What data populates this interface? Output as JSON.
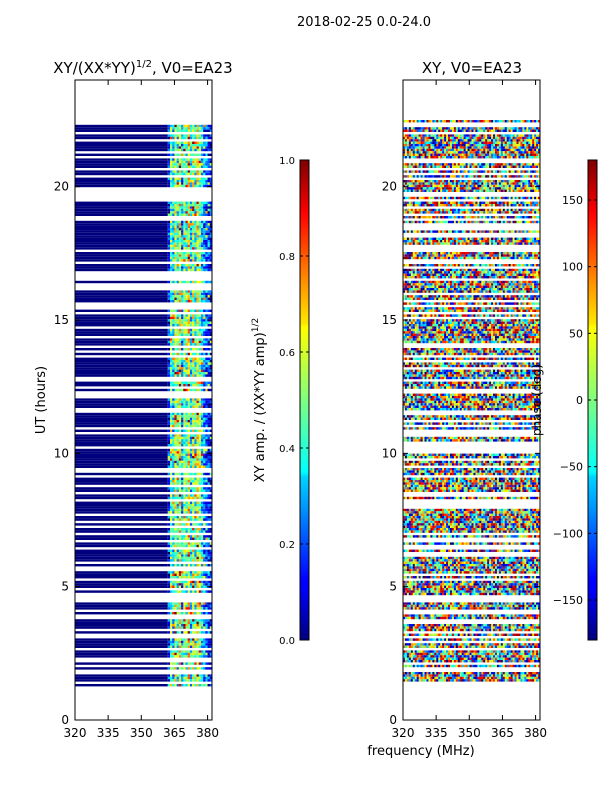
{
  "suptitle": "2018-02-25 0.0-24.0",
  "shared_xlabel": "frequency (MHz)",
  "chart_data": [
    {
      "type": "heatmap",
      "title_main": "XY/(XX*YY)",
      "title_sup": "1/2",
      "title_tail": ", V0=EA23",
      "xlabel": "",
      "ylabel": "UT (hours)",
      "xlim": [
        320,
        382
      ],
      "ylim": [
        0,
        24
      ],
      "xticks": [
        320,
        335,
        350,
        365,
        380
      ],
      "yticks": [
        0,
        5,
        10,
        15,
        20
      ],
      "data_extent_hours": [
        1.2,
        22.5
      ],
      "flagged_freq_range_MHz": [
        320,
        362
      ],
      "colorbar": {
        "label_main": "XY amp. / (XX*YY amp)",
        "label_sup": "1/2",
        "range": [
          0.0,
          1.0
        ],
        "ticks": [
          "0.0",
          "0.2",
          "0.4",
          "0.6",
          "0.8",
          "1.0"
        ],
        "tick_values": [
          0.0,
          0.2,
          0.4,
          0.6,
          0.8,
          1.0
        ]
      }
    },
    {
      "type": "heatmap",
      "title_main": "XY, V0=EA23",
      "xlabel": "frequency (MHz)",
      "ylabel": "",
      "xlim": [
        320,
        382
      ],
      "ylim": [
        0,
        24
      ],
      "xticks": [
        320,
        335,
        350,
        365,
        380
      ],
      "yticks": [
        0,
        5,
        10,
        15,
        20
      ],
      "data_extent_hours": [
        1.2,
        22.5
      ],
      "colorbar": {
        "label_main": "phase (deg)",
        "range": [
          -180,
          180
        ],
        "ticks": [
          "−150",
          "−100",
          "−50",
          "0",
          "50",
          "100",
          "150"
        ],
        "tick_values": [
          -150,
          -100,
          -50,
          0,
          50,
          100,
          150
        ]
      }
    }
  ]
}
